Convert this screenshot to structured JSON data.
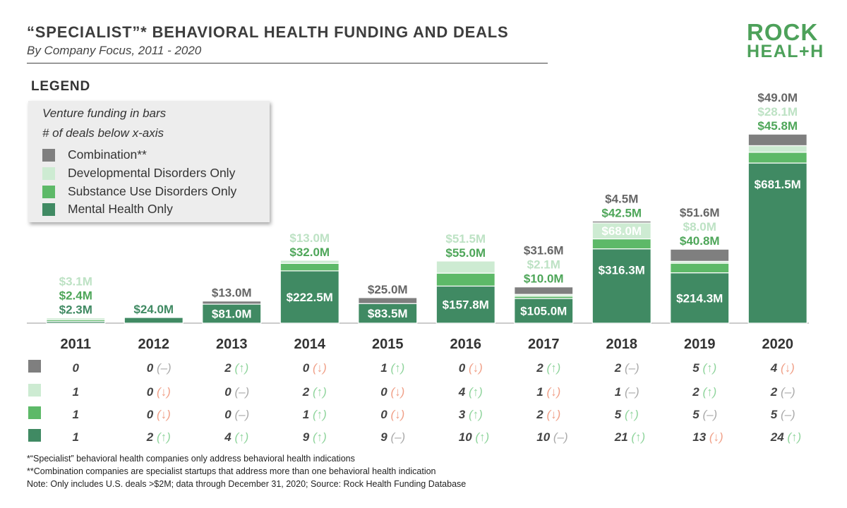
{
  "header": {
    "title": "“SPECIALIST”* BEHAVIORAL HEALTH FUNDING AND DEALS",
    "subtitle": "By Company Focus, 2011 - 2020"
  },
  "logo": {
    "line1": "ROCK",
    "line2": "HEAL+H"
  },
  "legend": {
    "heading": "LEGEND",
    "note1": "Venture funding in bars",
    "note2": "# of deals below x-axis",
    "items": [
      {
        "label": "Combination**",
        "color": "#7f7f7f"
      },
      {
        "label": "Developmental Disorders Only",
        "color": "#cdebd2"
      },
      {
        "label": "Substance Use Disorders Only",
        "color": "#5db968"
      },
      {
        "label": "Mental Health Only",
        "color": "#408a63"
      }
    ]
  },
  "chart_data": {
    "type": "bar",
    "stacked": true,
    "categories": [
      "2011",
      "2012",
      "2013",
      "2014",
      "2015",
      "2016",
      "2017",
      "2018",
      "2019",
      "2020"
    ],
    "series": [
      {
        "name": "Mental Health Only",
        "color": "#408a63",
        "text_color": "#408a63",
        "values": [
          2.3,
          24.0,
          81.0,
          222.5,
          83.5,
          157.8,
          105.0,
          316.3,
          214.3,
          681.5
        ],
        "labels": [
          "$2.3M",
          "$24.0M",
          "$81.0M",
          "$222.5M",
          "$83.5M",
          "$157.8M",
          "$105.0M",
          "$316.3M",
          "$214.3M",
          "$681.5M"
        ]
      },
      {
        "name": "Substance Use Disorders Only",
        "color": "#5db968",
        "text_color": "#4ea659",
        "values": [
          2.4,
          0,
          0,
          32.0,
          0,
          55.0,
          10.0,
          42.5,
          40.8,
          45.8
        ],
        "labels": [
          "$2.4M",
          "",
          "",
          "$32.0M",
          "",
          "$55.0M",
          "$10.0M",
          "$42.5M",
          "$40.8M",
          "$45.8M"
        ]
      },
      {
        "name": "Developmental Disorders Only",
        "color": "#cdebd2",
        "text_color": "#bde2c4",
        "values": [
          3.1,
          0,
          0,
          13.0,
          0,
          51.5,
          2.1,
          68.0,
          8.0,
          28.1
        ],
        "labels": [
          "$3.1M",
          "",
          "",
          "$13.0M",
          "",
          "$51.5M",
          "$2.1M",
          "$68.0M",
          "$8.0M",
          "$28.1M"
        ]
      },
      {
        "name": "Combination**",
        "color": "#7f7f7f",
        "text_color": "#666666",
        "values": [
          0,
          0,
          13.0,
          0,
          25.0,
          0,
          31.6,
          4.5,
          51.6,
          49.0
        ],
        "labels": [
          "",
          "",
          "$13.0M",
          "",
          "$25.0M",
          "",
          "$31.6M",
          "$4.5M",
          "$51.6M",
          "$49.0M"
        ]
      }
    ],
    "deals": {
      "rows": [
        {
          "name": "Combination**",
          "color": "#7f7f7f",
          "values": [
            "0",
            "0",
            "2",
            "0",
            "1",
            "0",
            "2",
            "2",
            "5",
            "4"
          ],
          "trend": [
            "",
            "–",
            "↑",
            "↓",
            "↑",
            "↓",
            "↑",
            "–",
            "↑",
            "↓"
          ]
        },
        {
          "name": "Developmental Disorders Only",
          "color": "#cdebd2",
          "values": [
            "1",
            "0",
            "0",
            "2",
            "0",
            "4",
            "1",
            "1",
            "2",
            "2"
          ],
          "trend": [
            "",
            "↓",
            "–",
            "↑",
            "↓",
            "↑",
            "↓",
            "–",
            "↑",
            "–"
          ]
        },
        {
          "name": "Substance Use Disorders Only",
          "color": "#5db968",
          "values": [
            "1",
            "0",
            "0",
            "1",
            "0",
            "3",
            "2",
            "5",
            "5",
            "5"
          ],
          "trend": [
            "",
            "↓",
            "–",
            "↑",
            "↓",
            "↑",
            "↓",
            "↑",
            "–",
            "–"
          ]
        },
        {
          "name": "Mental Health Only",
          "color": "#408a63",
          "values": [
            "1",
            "2",
            "4",
            "9",
            "9",
            "10",
            "10",
            "21",
            "13",
            "24"
          ],
          "trend": [
            "",
            "↑",
            "↑",
            "↑",
            "–",
            "↑",
            "–",
            "↑",
            "↓",
            "↑"
          ]
        }
      ],
      "trend_colors": {
        "↑": "#8fd49c",
        "↓": "#f0a088",
        "–": "#aaaaaa"
      }
    },
    "grid": false,
    "legend_position": "top-left"
  },
  "footnotes": [
    "*“Specialist” behavioral health companies only address behavioral health indications",
    "**Combination companies are specialist startups that address more than one behavioral health indication",
    "Note: Only includes U.S. deals >$2M; data through December 31, 2020; Source: Rock Health Funding Database"
  ]
}
